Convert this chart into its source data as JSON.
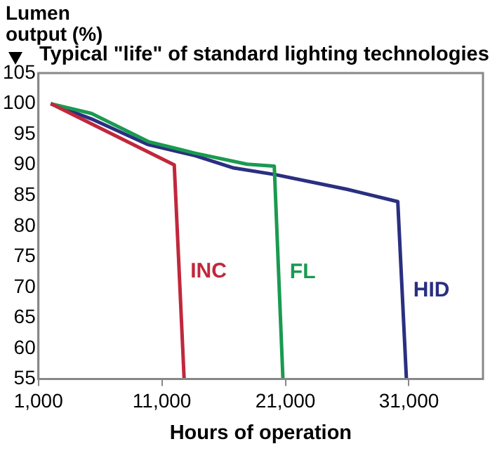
{
  "chart_data": {
    "type": "line",
    "title": "Typical \"life\" of standard lighting technologies",
    "ylabel": "Lumen output (%)",
    "xlabel": "Hours of operation",
    "xlim": [
      1000,
      37000
    ],
    "xticks": [
      {
        "value": 1000,
        "label": "1,000"
      },
      {
        "value": 11000,
        "label": "11,000"
      },
      {
        "value": 21000,
        "label": "21,000"
      },
      {
        "value": 31000,
        "label": "31,000"
      }
    ],
    "ylim": [
      55,
      105
    ],
    "yticks": [
      55,
      60,
      65,
      70,
      75,
      80,
      85,
      90,
      95,
      100,
      105
    ],
    "marker": "none",
    "legend": false,
    "series": [
      {
        "name": "INC",
        "color": "#c0283c",
        "x": [
          2000,
          12000,
          12800
        ],
        "values": [
          100,
          90,
          55
        ]
      },
      {
        "name": "FL",
        "color": "#1a9a50",
        "x": [
          2000,
          5300,
          9900,
          13700,
          17900,
          20100,
          20800
        ],
        "values": [
          100,
          98.4,
          93.8,
          91.9,
          90.1,
          89.8,
          55
        ]
      },
      {
        "name": "HID",
        "color": "#2a2f80",
        "x": [
          2000,
          5300,
          9900,
          13700,
          16800,
          20200,
          26000,
          30100,
          30800
        ],
        "values": [
          100,
          97.5,
          93.3,
          91.5,
          89.5,
          88.4,
          86,
          84,
          55
        ]
      }
    ]
  }
}
